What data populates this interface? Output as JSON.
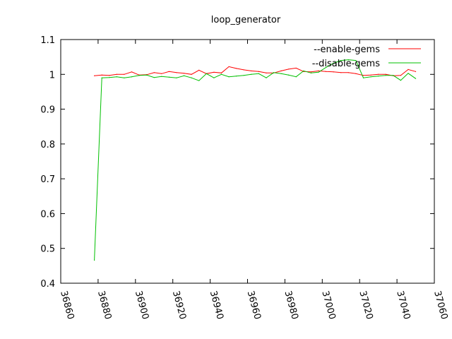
{
  "chart_data": {
    "type": "line",
    "title": "loop_generator",
    "xlabel": "",
    "ylabel": "",
    "xlim": [
      36860,
      37060
    ],
    "ylim": [
      0.4,
      1.1
    ],
    "x_ticks": [
      36860,
      36880,
      36900,
      36920,
      36940,
      36960,
      36980,
      37000,
      37020,
      37040,
      37060
    ],
    "y_ticks": [
      0.4,
      0.5,
      0.6,
      0.7,
      0.8,
      0.9,
      1,
      1.1
    ],
    "grid": false,
    "legend_position": "top-right",
    "series": [
      {
        "name": "--enable-gems",
        "color": "#ff0000",
        "x": [
          36878,
          36882,
          36886,
          36890,
          36894,
          36898,
          36902,
          36906,
          36910,
          36914,
          36918,
          36922,
          36926,
          36930,
          36934,
          36938,
          36942,
          36946,
          36950,
          36954,
          36958,
          36962,
          36966,
          36970,
          36974,
          36978,
          36982,
          36986,
          36990,
          36994,
          36998,
          37002,
          37006,
          37010,
          37014,
          37018,
          37022,
          37026,
          37030,
          37034,
          37038,
          37042,
          37046,
          37050
        ],
        "values": [
          0.996,
          0.998,
          0.997,
          1.0,
          1.0,
          1.007,
          0.998,
          0.999,
          1.005,
          1.002,
          1.008,
          1.005,
          1.003,
          1.0,
          1.012,
          1.002,
          1.006,
          1.004,
          1.022,
          1.017,
          1.013,
          1.01,
          1.008,
          1.004,
          1.004,
          1.01,
          1.015,
          1.018,
          1.008,
          1.007,
          1.01,
          1.008,
          1.007,
          1.005,
          1.005,
          1.002,
          0.997,
          0.998,
          1.0,
          1.0,
          0.996,
          0.997,
          1.014,
          1.008
        ]
      },
      {
        "name": "--disable-gems",
        "color": "#00c000",
        "x": [
          36878,
          36882,
          36886,
          36890,
          36894,
          36898,
          36902,
          36906,
          36910,
          36914,
          36918,
          36922,
          36926,
          36930,
          36934,
          36938,
          36942,
          36946,
          36950,
          36954,
          36958,
          36962,
          36966,
          36970,
          36974,
          36978,
          36982,
          36986,
          36990,
          36994,
          36998,
          37002,
          37006,
          37010,
          37014,
          37018,
          37022,
          37026,
          37030,
          37034,
          37038,
          37042,
          37046,
          37050
        ],
        "values": [
          0.466,
          0.99,
          0.991,
          0.993,
          0.99,
          0.993,
          0.997,
          0.998,
          0.991,
          0.994,
          0.992,
          0.99,
          0.996,
          0.99,
          0.982,
          1.002,
          0.99,
          1.0,
          0.993,
          0.995,
          0.997,
          1.0,
          1.002,
          0.99,
          1.005,
          1.002,
          0.998,
          0.993,
          1.01,
          1.004,
          1.006,
          1.02,
          1.032,
          1.04,
          1.042,
          1.04,
          0.99,
          0.993,
          0.995,
          0.997,
          0.997,
          0.983,
          1.003,
          0.988
        ]
      }
    ]
  }
}
